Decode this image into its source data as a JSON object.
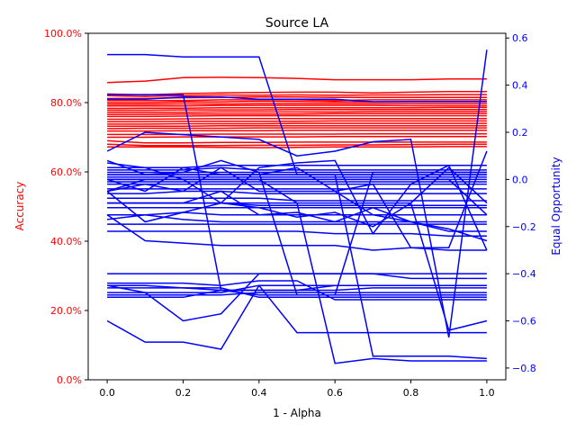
{
  "chart_data": {
    "type": "line",
    "title": "Source LA",
    "xlabel": "1 - Alpha",
    "ylabel_left": "Accuracy",
    "ylabel_right": "Equal Opportunity",
    "x": [
      0.0,
      0.1,
      0.2,
      0.3,
      0.4,
      0.5,
      0.6,
      0.7,
      0.8,
      0.9,
      1.0
    ],
    "xlim": [
      -0.05,
      1.05
    ],
    "ylim_left": [
      0.0,
      1.0
    ],
    "ylim_right": [
      -0.85,
      0.62
    ],
    "x_ticks": [
      "0.0",
      "0.2",
      "0.4",
      "0.6",
      "0.8",
      "1.0"
    ],
    "left_ticks": [
      "0.0%",
      "20.0%",
      "40.0%",
      "60.0%",
      "80.0%",
      "100.0%"
    ],
    "right_ticks": [
      "−0.8",
      "−0.6",
      "−0.4",
      "−0.2",
      "0.0",
      "0.2",
      "0.4",
      "0.6"
    ],
    "left_color": "#ff0000",
    "right_color": "#0000ff",
    "grid": false,
    "accuracy_series": [
      [
        0.858,
        0.862,
        0.872,
        0.873,
        0.872,
        0.87,
        0.866,
        0.866,
        0.866,
        0.868,
        0.868
      ],
      [
        0.825,
        0.822,
        0.826,
        0.828,
        0.829,
        0.83,
        0.83,
        0.828,
        0.83,
        0.832,
        0.832
      ],
      [
        0.82,
        0.818,
        0.82,
        0.822,
        0.821,
        0.822,
        0.821,
        0.822,
        0.822,
        0.823,
        0.823
      ],
      [
        0.812,
        0.812,
        0.814,
        0.815,
        0.816,
        0.816,
        0.815,
        0.815,
        0.815,
        0.815,
        0.815
      ],
      [
        0.806,
        0.806,
        0.806,
        0.808,
        0.808,
        0.808,
        0.806,
        0.808,
        0.808,
        0.808,
        0.808
      ],
      [
        0.8,
        0.8,
        0.802,
        0.802,
        0.804,
        0.803,
        0.802,
        0.802,
        0.803,
        0.803,
        0.803
      ],
      [
        0.795,
        0.795,
        0.796,
        0.796,
        0.797,
        0.797,
        0.797,
        0.797,
        0.797,
        0.797,
        0.797
      ],
      [
        0.79,
        0.79,
        0.79,
        0.792,
        0.792,
        0.792,
        0.792,
        0.792,
        0.791,
        0.791,
        0.791
      ],
      [
        0.783,
        0.784,
        0.784,
        0.785,
        0.785,
        0.785,
        0.785,
        0.785,
        0.785,
        0.786,
        0.786
      ],
      [
        0.778,
        0.778,
        0.779,
        0.779,
        0.779,
        0.78,
        0.78,
        0.78,
        0.78,
        0.78,
        0.78
      ],
      [
        0.772,
        0.772,
        0.772,
        0.773,
        0.773,
        0.773,
        0.773,
        0.774,
        0.774,
        0.774,
        0.774
      ],
      [
        0.766,
        0.766,
        0.767,
        0.767,
        0.767,
        0.767,
        0.768,
        0.768,
        0.768,
        0.768,
        0.768
      ],
      [
        0.76,
        0.76,
        0.761,
        0.762,
        0.762,
        0.762,
        0.762,
        0.762,
        0.762,
        0.762,
        0.762
      ],
      [
        0.752,
        0.752,
        0.753,
        0.754,
        0.754,
        0.754,
        0.754,
        0.754,
        0.754,
        0.754,
        0.754
      ],
      [
        0.745,
        0.745,
        0.746,
        0.746,
        0.746,
        0.746,
        0.747,
        0.747,
        0.747,
        0.747,
        0.747
      ],
      [
        0.738,
        0.738,
        0.739,
        0.739,
        0.739,
        0.74,
        0.74,
        0.74,
        0.74,
        0.74,
        0.74
      ],
      [
        0.732,
        0.732,
        0.732,
        0.733,
        0.733,
        0.733,
        0.733,
        0.733,
        0.733,
        0.733,
        0.733
      ],
      [
        0.725,
        0.726,
        0.726,
        0.726,
        0.727,
        0.727,
        0.727,
        0.727,
        0.727,
        0.727,
        0.727
      ],
      [
        0.718,
        0.718,
        0.719,
        0.719,
        0.719,
        0.72,
        0.72,
        0.72,
        0.72,
        0.72,
        0.72
      ],
      [
        0.708,
        0.708,
        0.708,
        0.709,
        0.709,
        0.709,
        0.709,
        0.71,
        0.71,
        0.71,
        0.71
      ],
      [
        0.7,
        0.7,
        0.701,
        0.701,
        0.701,
        0.701,
        0.702,
        0.702,
        0.702,
        0.702,
        0.702
      ],
      [
        0.69,
        0.684,
        0.684,
        0.685,
        0.685,
        0.686,
        0.686,
        0.686,
        0.686,
        0.686,
        0.686
      ],
      [
        0.68,
        0.676,
        0.676,
        0.676,
        0.677,
        0.677,
        0.678,
        0.678,
        0.679,
        0.68,
        0.68
      ],
      [
        0.672,
        0.672,
        0.672,
        0.671,
        0.67,
        0.671,
        0.672,
        0.672,
        0.672,
        0.673,
        0.673
      ]
    ],
    "equal_opportunity_series": [
      [
        0.53,
        0.53,
        0.52,
        0.52,
        0.52,
        0.02,
        0.02,
        0.02,
        0.02,
        0.02,
        0.02
      ],
      [
        0.36,
        0.36,
        0.36,
        -0.47,
        -0.47,
        -0.47,
        -0.47,
        -0.46,
        -0.46,
        -0.46,
        -0.46
      ],
      [
        0.34,
        0.34,
        0.35,
        0.35,
        0.34,
        0.34,
        0.34,
        0.33,
        0.33,
        0.33,
        0.33
      ],
      [
        0.12,
        0.2,
        0.19,
        0.18,
        0.17,
        0.1,
        0.12,
        0.16,
        0.17,
        -0.67,
        0.55
      ],
      [
        0.05,
        0.05,
        0.05,
        0.06,
        0.06,
        0.06,
        0.06,
        0.06,
        0.06,
        0.06,
        0.06
      ],
      [
        0.04,
        0.04,
        0.04,
        0.05,
        0.04,
        0.04,
        0.04,
        0.04,
        0.04,
        0.04,
        0.04
      ],
      [
        0.08,
        0.02,
        0.03,
        0.08,
        0.03,
        -0.49,
        -0.49,
        0.03,
        0.03,
        0.03,
        0.03
      ],
      [
        0.03,
        0.03,
        0.03,
        0.03,
        0.03,
        0.03,
        0.03,
        0.03,
        0.03,
        0.03,
        0.03
      ],
      [
        0.02,
        0.02,
        0.02,
        0.02,
        0.02,
        0.02,
        0.02,
        0.02,
        0.02,
        0.02,
        0.02
      ],
      [
        0.01,
        0.01,
        0.01,
        0.01,
        0.01,
        0.01,
        0.01,
        0.01,
        0.01,
        0.01,
        0.01
      ],
      [
        0.0,
        0.0,
        0.0,
        0.0,
        0.0,
        0.0,
        0.0,
        0.0,
        0.0,
        0.0,
        0.0
      ],
      [
        -0.01,
        -0.01,
        -0.01,
        -0.01,
        -0.01,
        -0.01,
        -0.01,
        -0.01,
        -0.01,
        -0.01,
        -0.01
      ],
      [
        -0.02,
        -0.02,
        -0.02,
        -0.02,
        -0.02,
        -0.02,
        -0.02,
        -0.02,
        -0.02,
        -0.02,
        -0.02
      ],
      [
        -0.04,
        -0.04,
        -0.04,
        -0.04,
        -0.04,
        -0.04,
        -0.04,
        -0.04,
        -0.04,
        -0.04,
        -0.04
      ],
      [
        -0.06,
        -0.06,
        -0.05,
        -0.05,
        -0.06,
        -0.06,
        -0.06,
        -0.06,
        -0.06,
        -0.06,
        -0.06
      ],
      [
        -0.08,
        -0.08,
        -0.08,
        -0.08,
        -0.08,
        -0.09,
        -0.09,
        -0.09,
        -0.09,
        -0.09,
        -0.09
      ],
      [
        -0.1,
        -0.1,
        -0.1,
        -0.1,
        -0.11,
        -0.11,
        -0.11,
        -0.11,
        -0.11,
        -0.11,
        -0.11
      ],
      [
        -0.12,
        -0.12,
        -0.12,
        -0.12,
        -0.12,
        -0.12,
        -0.12,
        -0.12,
        -0.12,
        -0.12,
        -0.12
      ],
      [
        -0.15,
        -0.15,
        -0.14,
        -0.15,
        -0.15,
        -0.15,
        -0.15,
        -0.15,
        -0.15,
        -0.15,
        -0.15
      ],
      [
        -0.05,
        -0.18,
        -0.14,
        -0.1,
        -0.12,
        -0.16,
        -0.14,
        -0.2,
        -0.1,
        0.05,
        -0.1
      ],
      [
        0.07,
        0.05,
        0.0,
        -0.1,
        0.05,
        0.07,
        0.08,
        -0.23,
        -0.02,
        0.06,
        -0.3
      ],
      [
        -0.1,
        -0.1,
        -0.1,
        -0.05,
        -0.15,
        -0.14,
        -0.18,
        -0.12,
        -0.18,
        -0.21,
        -0.26
      ],
      [
        -0.05,
        -0.02,
        -0.05,
        0.05,
        -0.05,
        -0.05,
        -0.05,
        -0.15,
        -0.18,
        -0.22,
        -0.22
      ],
      [
        0.0,
        -0.05,
        0.05,
        0.02,
        0.02,
        0.05,
        -0.05,
        -0.02,
        -0.29,
        -0.29,
        0.12
      ],
      [
        -0.17,
        -0.15,
        -0.17,
        -0.18,
        -0.18,
        -0.18,
        -0.18,
        -0.18,
        -0.18,
        -0.18,
        -0.18
      ],
      [
        -0.19,
        -0.19,
        -0.19,
        -0.19,
        -0.19,
        -0.19,
        -0.19,
        -0.19,
        -0.19,
        -0.19,
        -0.19
      ],
      [
        -0.22,
        -0.22,
        -0.22,
        -0.22,
        -0.22,
        -0.22,
        -0.23,
        -0.23,
        -0.23,
        -0.24,
        -0.24
      ],
      [
        -0.15,
        -0.26,
        -0.27,
        -0.28,
        -0.28,
        -0.28,
        -0.28,
        -0.3,
        -0.29,
        -0.3,
        -0.3
      ],
      [
        -0.45,
        -0.48,
        -0.6,
        -0.57,
        -0.4,
        -0.4,
        -0.4,
        -0.4,
        -0.4,
        -0.4,
        -0.4
      ],
      [
        -0.4,
        -0.4,
        -0.4,
        -0.4,
        -0.4,
        -0.4,
        -0.4,
        -0.4,
        -0.42,
        -0.42,
        -0.42
      ],
      [
        -0.5,
        -0.5,
        -0.5,
        -0.47,
        -0.47,
        -0.47,
        -0.45,
        -0.45,
        -0.45,
        -0.45,
        -0.45
      ],
      [
        -0.6,
        -0.69,
        -0.69,
        -0.72,
        -0.45,
        -0.45,
        -0.45,
        -0.45,
        -0.45,
        -0.45,
        -0.45
      ],
      [
        -0.44,
        -0.44,
        -0.44,
        -0.45,
        -0.43,
        -0.43,
        -0.51,
        -0.51,
        -0.51,
        -0.51,
        -0.51
      ],
      [
        -0.49,
        -0.49,
        -0.49,
        -0.49,
        -0.48,
        -0.48,
        -0.48,
        -0.48,
        -0.48,
        -0.48,
        -0.48
      ],
      [
        -0.45,
        -0.45,
        -0.46,
        -0.47,
        -0.49,
        -0.49,
        -0.49,
        -0.49,
        -0.49,
        -0.49,
        -0.49
      ],
      [
        -0.46,
        -0.46,
        -0.46,
        -0.46,
        -0.5,
        -0.5,
        -0.5,
        -0.5,
        -0.5,
        -0.5,
        -0.5
      ],
      [
        -0.48,
        -0.48,
        -0.48,
        -0.48,
        -0.45,
        -0.65,
        -0.65,
        -0.65,
        -0.65,
        -0.65,
        -0.65
      ],
      [
        0.0,
        0.0,
        0.0,
        0.0,
        0.0,
        -0.1,
        -0.78,
        -0.76,
        -0.77,
        -0.77,
        -0.77
      ],
      [
        -0.1,
        -0.1,
        -0.1,
        -0.1,
        -0.1,
        -0.1,
        -0.1,
        -0.1,
        -0.1,
        -0.64,
        -0.6
      ],
      [
        0.02,
        0.02,
        0.02,
        0.02,
        0.02,
        0.02,
        0.02,
        -0.75,
        -0.75,
        -0.75,
        -0.76
      ],
      [
        -0.05,
        0.0,
        0.0,
        0.0,
        0.0,
        0.0,
        0.0,
        0.0,
        0.0,
        0.0,
        -0.15
      ]
    ]
  }
}
